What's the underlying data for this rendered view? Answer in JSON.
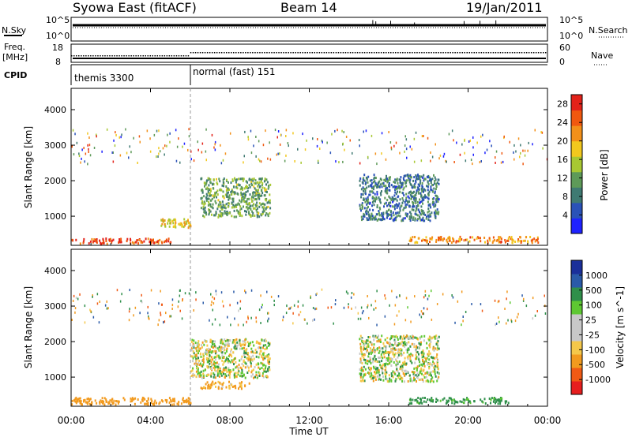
{
  "header": {
    "station": "Syowa East (fitACF)",
    "beam": "Beam 14",
    "date": "19/Jan/2011"
  },
  "noise_panel": {
    "left_label": "N.Sky",
    "right_label": "N.Search",
    "ticks_left": [
      "10^5",
      "10^0"
    ],
    "ticks_right": [
      "10^5",
      "10^0"
    ]
  },
  "freq_panel": {
    "left_label_1": "Freq.",
    "left_label_2": "[MHz]",
    "right_label": "Nave",
    "ticks_left": [
      "18",
      "8"
    ],
    "ticks_right": [
      "60",
      "0"
    ]
  },
  "cpid_panel": {
    "label": "CPID",
    "modes": [
      {
        "name": "themis 3300",
        "start_hour": 0
      },
      {
        "name": "normal (fast) 151",
        "start_hour": 6
      }
    ]
  },
  "time_axis": {
    "label": "Time UT",
    "ticks": [
      "00:00",
      "04:00",
      "08:00",
      "12:00",
      "16:00",
      "20:00",
      "00:00"
    ]
  },
  "colors": {
    "power_scale": [
      "#1e22ff",
      "#2a52b8",
      "#3f7a72",
      "#5e9a58",
      "#a8c832",
      "#f2c81e",
      "#f39019",
      "#f0580f",
      "#e3221a"
    ],
    "velocity_scale": [
      "#e61e1e",
      "#f05a14",
      "#f29a1e",
      "#f5c84a",
      "#c8c8c8",
      "#c8c8c8",
      "#5ec832",
      "#2f8f4a",
      "#2a5aa8",
      "#1a2f9a"
    ]
  },
  "chart_data": [
    {
      "type": "heatmap",
      "title": "",
      "xlabel": "Time UT",
      "ylabel": "Slant Range [km]",
      "x_range_hours": [
        0,
        24
      ],
      "ylim": [
        180,
        4600
      ],
      "y_ticks": [
        "1000",
        "2000",
        "3000",
        "4000"
      ],
      "colorbar": {
        "label": "Power [dB]",
        "ticks": [
          "4",
          "8",
          "12",
          "16",
          "20",
          "24",
          "28"
        ],
        "range": [
          0,
          30
        ]
      },
      "notable_features": [
        {
          "hours": [
            0.0,
            5.0
          ],
          "range_km": [
            250,
            400
          ],
          "power_db": 26
        },
        {
          "hours": [
            4.5,
            6.0
          ],
          "range_km": [
            700,
            950
          ],
          "power_db": 18
        },
        {
          "hours": [
            6.5,
            10.0
          ],
          "range_km": [
            1000,
            2100
          ],
          "power_db": 12
        },
        {
          "hours": [
            14.5,
            18.5
          ],
          "range_km": [
            900,
            2200
          ],
          "power_db": 8
        },
        {
          "hours": [
            17.0,
            23.5
          ],
          "range_km": [
            280,
            450
          ],
          "power_db": 22
        }
      ]
    },
    {
      "type": "heatmap",
      "title": "",
      "xlabel": "Time UT",
      "ylabel": "Slant Range [km]",
      "x_range_hours": [
        0,
        24
      ],
      "ylim": [
        180,
        4600
      ],
      "y_ticks": [
        "1000",
        "2000",
        "3000",
        "4000"
      ],
      "colorbar": {
        "label": "Velocity [m s^-1]",
        "ticks": [
          "1000",
          "500",
          "100",
          "25",
          "-25",
          "-100",
          "-500",
          "-1000"
        ],
        "range": [
          -1200,
          1200
        ]
      },
      "notable_features": [
        {
          "hours": [
            0.0,
            6.0
          ],
          "range_km": [
            250,
            450
          ],
          "velocity": -300
        },
        {
          "hours": [
            6.0,
            10.0
          ],
          "range_km": [
            1000,
            2100
          ],
          "velocity": 0
        },
        {
          "hours": [
            6.5,
            9.0
          ],
          "range_km": [
            700,
            900
          ],
          "velocity": -150
        },
        {
          "hours": [
            14.5,
            18.5
          ],
          "range_km": [
            900,
            2200
          ],
          "velocity": 0
        },
        {
          "hours": [
            17.0,
            22.0
          ],
          "range_km": [
            280,
            450
          ],
          "velocity": 200
        }
      ]
    }
  ]
}
